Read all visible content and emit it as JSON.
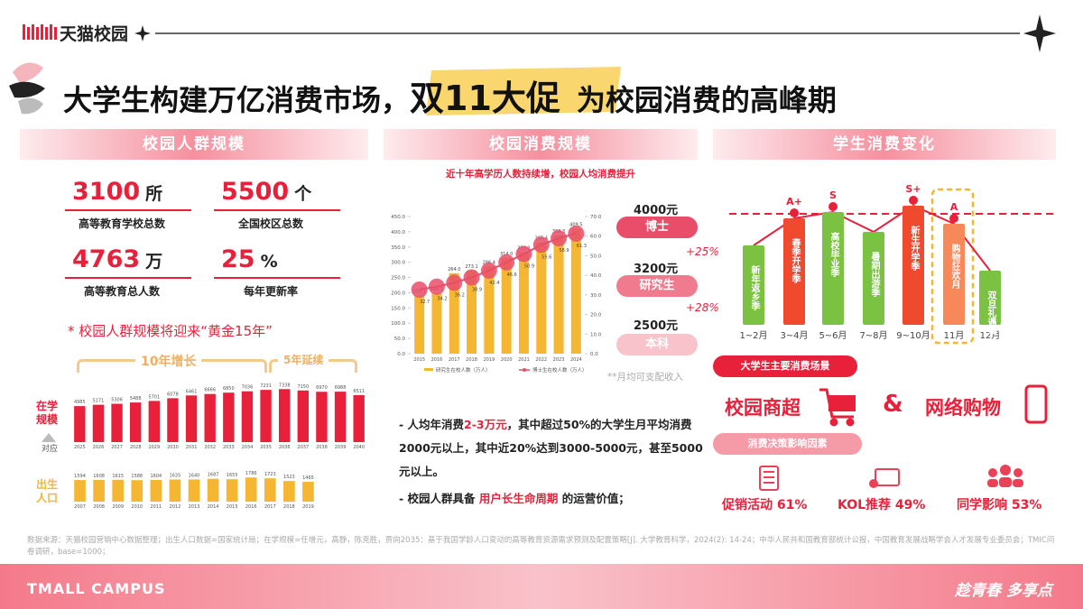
{
  "header": {
    "logo": "天猫校园"
  },
  "title": {
    "before": "大学生构建万亿消费市场，",
    "highlight": "双11大促",
    "after": "为校园消费的高峰期"
  },
  "left": {
    "heading": "校园人群规模",
    "stats": [
      {
        "number": "3100",
        "unit": "所",
        "label": "高等教育学校总数"
      },
      {
        "number": "5500",
        "unit": "个",
        "label": "全国校区总数"
      },
      {
        "number": "4763",
        "unit": "万",
        "label": "高等教育总人数"
      },
      {
        "number": "25",
        "unit": "%",
        "label": "每年更新率"
      }
    ],
    "note": "* 校园人群规模将迎来“黄金15年”",
    "growth_label": "10年增长",
    "continue_label": "5年延续",
    "enrollment_label": "在学规模",
    "arrow_label": "对应",
    "births_label": "出生人口",
    "enrollment": {
      "type": "bar",
      "color": "#e8203a",
      "categories": [
        "2025",
        "2026",
        "2027",
        "2028",
        "2029",
        "2030",
        "2031",
        "2032",
        "2033",
        "2034",
        "2035",
        "2036",
        "2037",
        "2038",
        "2039",
        "2040"
      ],
      "values": [
        4985,
        5171,
        5306,
        5488,
        5701,
        6078,
        6461,
        6666,
        6850,
        7036,
        7231,
        7338,
        7150,
        6970,
        6988,
        6511
      ]
    },
    "births": {
      "type": "bar",
      "color": "#f5b731",
      "categories": [
        "2007",
        "2008",
        "2009",
        "2010",
        "2011",
        "2012",
        "2013",
        "2014",
        "2015",
        "2016",
        "2017",
        "2018",
        "2019"
      ],
      "values": [
        1594,
        1608,
        1615,
        1588,
        1604,
        1635,
        1640,
        1687,
        1655,
        1786,
        1723,
        1523,
        1465
      ]
    }
  },
  "middle": {
    "heading": "校园消费规模",
    "subtitle": "近十年高学历人数持续增，校园人均消费提升",
    "chart": {
      "type": "bar-line",
      "categories": [
        "2015",
        "2016",
        "2017",
        "2018",
        "2019",
        "2020",
        "2021",
        "2022",
        "2023",
        "2024"
      ],
      "ylim": [
        0,
        450
      ],
      "yticks": [
        {
          "value": 0,
          "label": "0.0"
        },
        {
          "value": 50,
          "label": "50.0"
        },
        {
          "value": 100,
          "label": "100.0"
        },
        {
          "value": 150,
          "label": "150.0"
        },
        {
          "value": 200,
          "label": "200.0"
        },
        {
          "value": 250,
          "label": "250.0"
        },
        {
          "value": 300,
          "label": "300.0"
        },
        {
          "value": 350,
          "label": "350.0"
        },
        {
          "value": 400,
          "label": "400.0"
        },
        {
          "value": 450,
          "label": "450.0"
        }
      ],
      "y2lim": [
        0,
        70
      ],
      "y2ticks": [
        {
          "value": 0,
          "label": "0.0"
        },
        {
          "value": 10,
          "label": "10.0"
        },
        {
          "value": 20,
          "label": "20.0"
        },
        {
          "value": 30,
          "label": "30.0"
        },
        {
          "value": 40,
          "label": "40.0"
        },
        {
          "value": 50,
          "label": "50.0"
        },
        {
          "value": 60,
          "label": "60.0"
        },
        {
          "value": 70,
          "label": "70.0"
        }
      ],
      "series": [
        {
          "name": "研究生在校人数（万人）",
          "color": "#f5b731",
          "values": [
            191.1,
            198.1,
            264.0,
            273.1,
            286.4,
            314.0,
            333.2,
            365.4,
            388.3,
            409.5
          ],
          "value_labels": [
            "191.1",
            "198.1",
            "264.0",
            "273.1",
            "286.4",
            "314.0",
            "333.2",
            "365.4",
            "388.3",
            "409.5"
          ]
        },
        {
          "name": "博士生在校人数（万人）",
          "color": "#e84d6a",
          "axis": "y2",
          "values": [
            32.7,
            34.2,
            36.2,
            38.9,
            42.4,
            46.6,
            50.9,
            55.6,
            58.9,
            61.3
          ]
        }
      ]
    },
    "income": {
      "tiers": [
        {
          "price": "4000元",
          "name": "博士"
        },
        {
          "price": "3200元",
          "name": "研究生"
        },
        {
          "price": "2500元",
          "name": "本科"
        }
      ],
      "growth": [
        "+25%",
        "+28%"
      ],
      "note": "**月均可支配收入"
    },
    "bullets": [
      [
        "- 人均年消费",
        "2-3万元",
        "，其中超过50%的大学生月平均消费2000元以上，其中近20%达到3000-5000元，甚至5000元以上。"
      ],
      [
        "- 校园人群具备 ",
        "用户长生命周期",
        " 的运营价值；"
      ]
    ]
  },
  "right": {
    "heading": "学生消费变化",
    "calendar": [
      {
        "season": "新年返乡季",
        "month": "1~2月"
      },
      {
        "season": "春季开学季",
        "month": "3~4月",
        "grade": "A+"
      },
      {
        "season": "高校毕业季",
        "month": "5~6月",
        "grade": "S"
      },
      {
        "season": "暑期出游季",
        "month": "7~8月"
      },
      {
        "season": "新生开学季",
        "month": "9~10月",
        "grade": "S+"
      },
      {
        "season": "购物狂欢月",
        "month": "11月",
        "grade": "A"
      },
      {
        "season": "双旦礼遇季",
        "month": "12月"
      }
    ],
    "scenes_label": "大学生主要消费场景",
    "scenes": [
      "校园商超",
      "&",
      "网络购物"
    ],
    "factors_label": "消费决策影响因素",
    "factors": [
      "促销活动 61%",
      "KOL推荐 49%",
      "同学影响 53%"
    ]
  },
  "footer": {
    "source": "数据来源：天猫校园营销中心数据整理；出生人口数据=国家统计局；在学规模=任增元，高静，陈克胜，贾向2035：基于我国学龄人口变动的高等教育资源需求预测及配置策略[J]. 大学教育科学，2024(2): 14-24；中华人民共和国教育部统计公报，中国教育发展战略学会人才发展专业委员会；TMIC问卷调研，base=1000；",
    "brand": "TMALL CAMPUS",
    "slogan": "趁青春 多享点"
  }
}
